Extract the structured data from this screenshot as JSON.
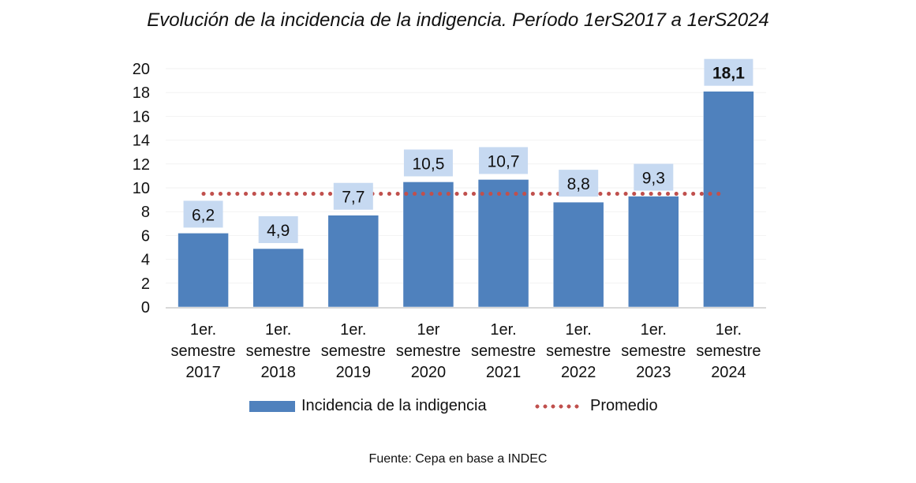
{
  "chart_data": {
    "type": "bar",
    "title": "Evolución de la incidencia de la indigencia. Período 1erS2017 a 1erS2024",
    "xlabel": "",
    "ylabel": "",
    "ylim": [
      0,
      20
    ],
    "yticks": [
      0,
      2,
      4,
      6,
      8,
      10,
      12,
      14,
      16,
      18,
      20
    ],
    "grid": true,
    "categories": [
      [
        "1er.",
        "semestre",
        "2017"
      ],
      [
        "1er.",
        "semestre",
        "2018"
      ],
      [
        "1er.",
        "semestre",
        "2019"
      ],
      [
        "1er",
        "semestre",
        "2020"
      ],
      [
        "1er.",
        "semestre",
        "2021"
      ],
      [
        "1er.",
        "semestre",
        "2022"
      ],
      [
        "1er.",
        "semestre",
        "2023"
      ],
      [
        "1er.",
        "semestre",
        "2024"
      ]
    ],
    "series": [
      {
        "name": "Incidencia de la indigencia",
        "type": "bar",
        "color": "#4f81bd",
        "values": [
          6.2,
          4.9,
          7.7,
          10.5,
          10.7,
          8.8,
          9.3,
          18.1
        ],
        "data_labels": [
          "6,2",
          "4,9",
          "7,7",
          "10,5",
          "10,7",
          "8,8",
          "9,3",
          "18,1"
        ],
        "bold_labels": [
          false,
          false,
          false,
          false,
          false,
          false,
          false,
          true
        ],
        "label_bg": "#c6d9f1"
      },
      {
        "name": "Promedio",
        "type": "line",
        "style": "dotted",
        "color": "#c0504d",
        "value": 9.5
      }
    ],
    "legend": "bottom"
  },
  "legend": {
    "bar_label": "Incidencia de la indigencia",
    "line_label": "Promedio"
  },
  "source": "Fuente: Cepa en base a INDEC"
}
